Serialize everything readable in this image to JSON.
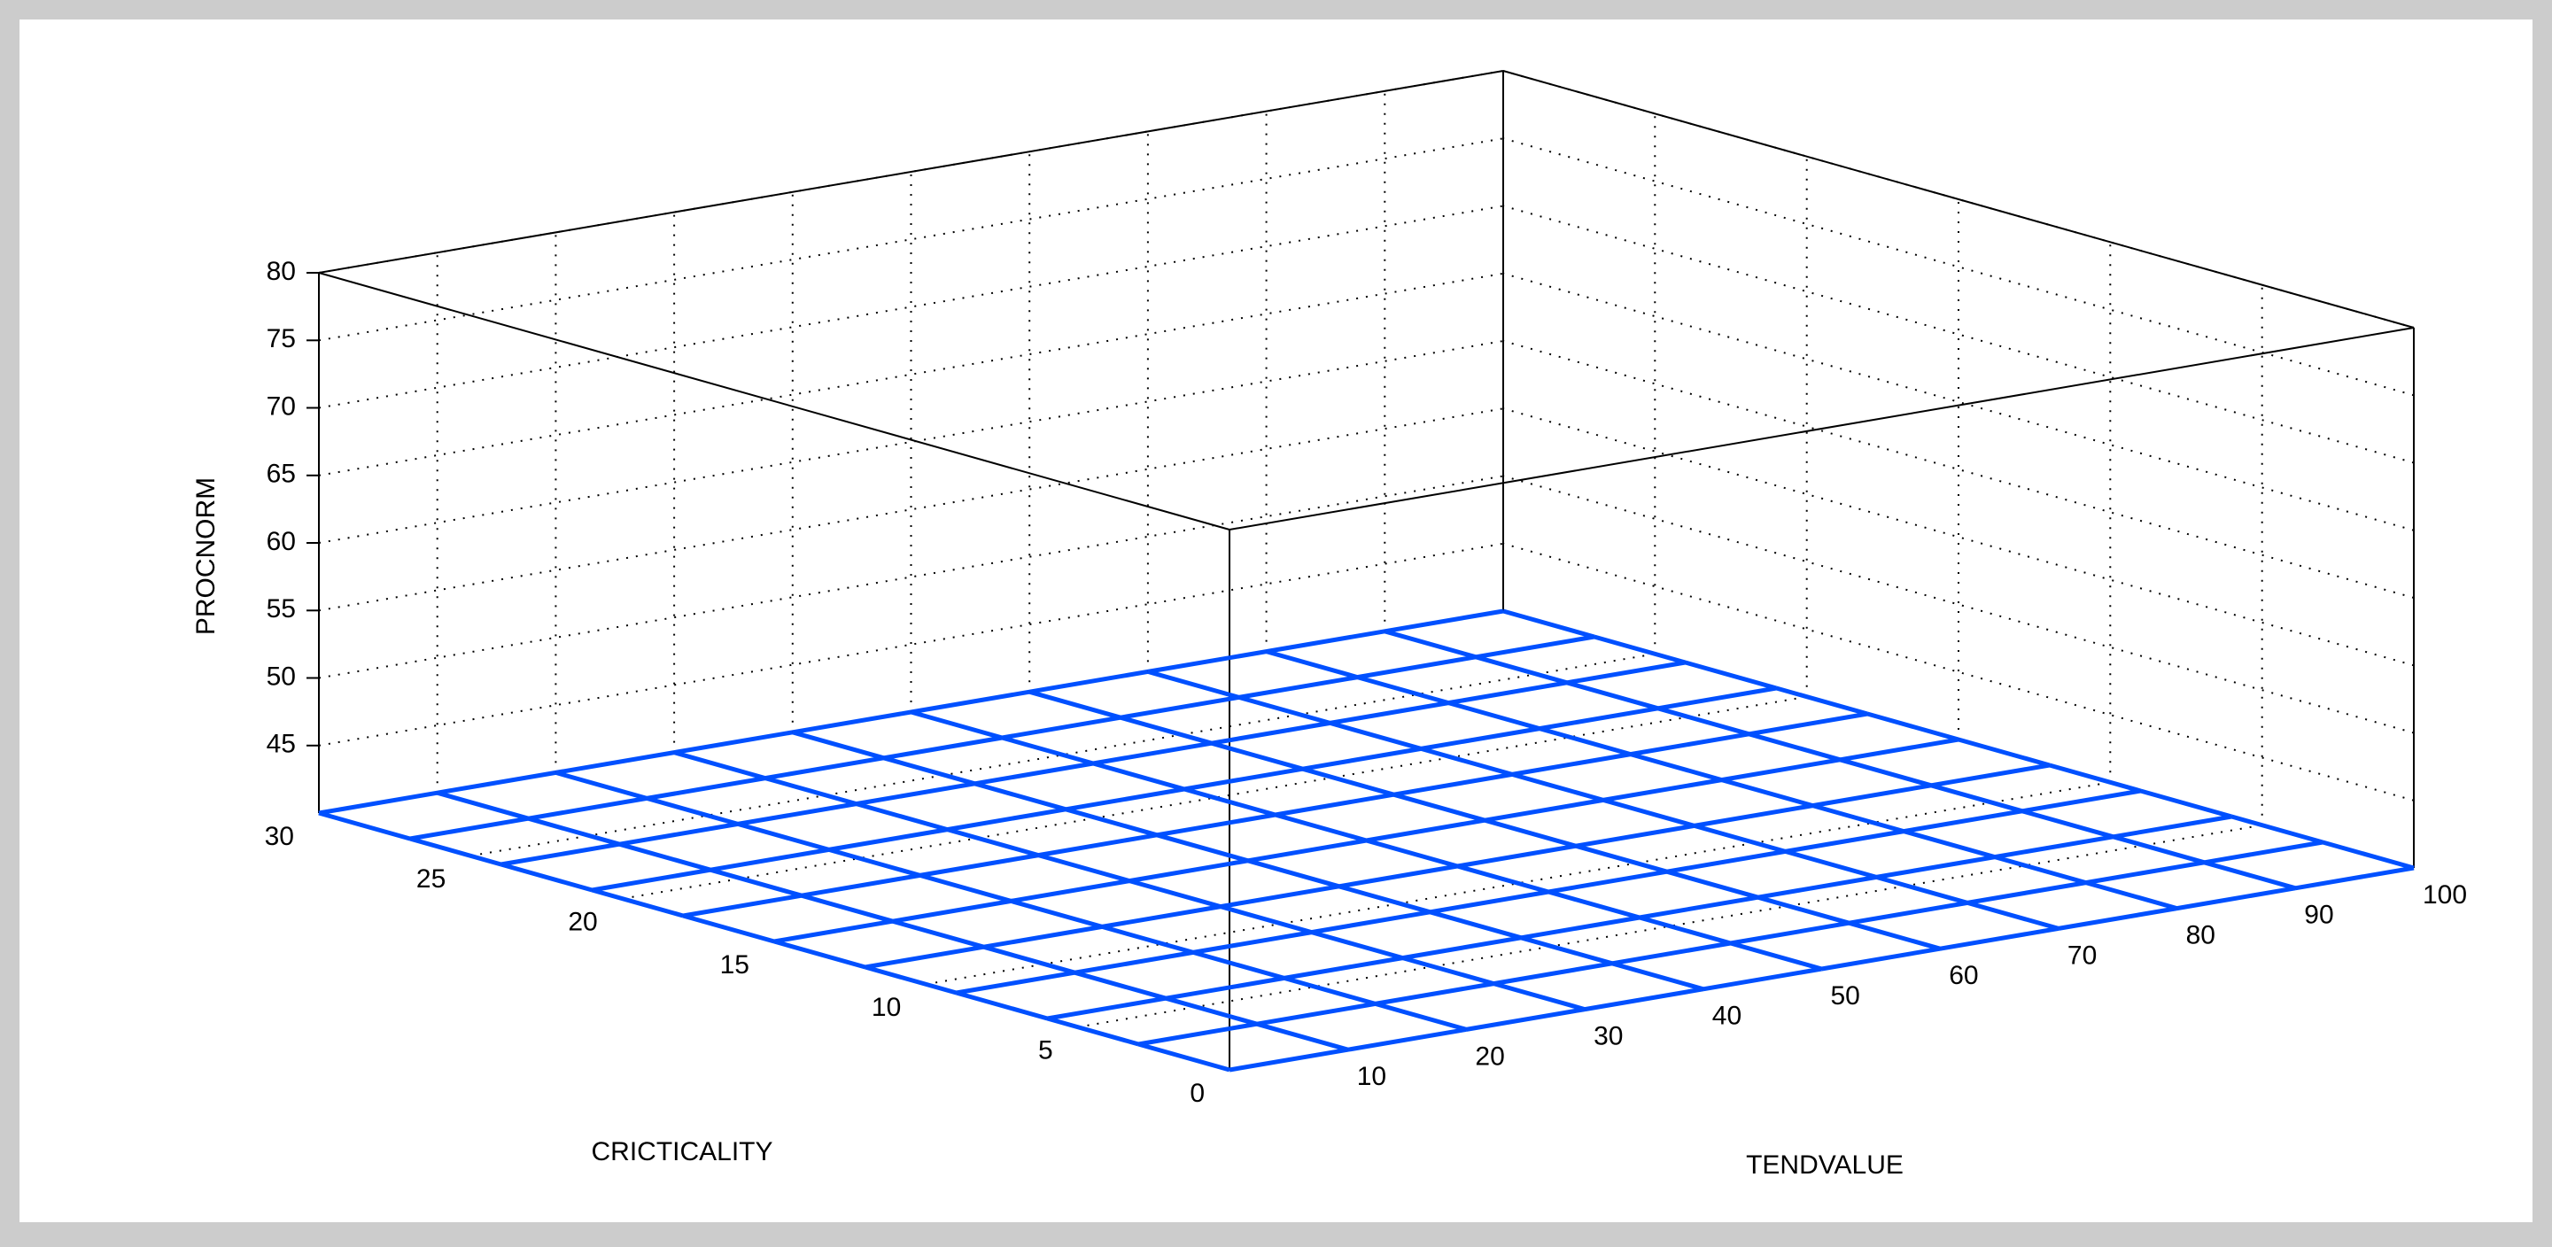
{
  "chart_data": {
    "type": "surface",
    "title": "",
    "xlabel": "TENDVALUE",
    "ylabel": "CRICTICALITY",
    "zlabel": "PROCNORM",
    "xlim": [
      0,
      100
    ],
    "ylim": [
      0,
      30
    ],
    "zlim": [
      40,
      80
    ],
    "x_ticks": [
      10,
      20,
      30,
      40,
      50,
      60,
      70,
      80,
      90,
      100
    ],
    "y_ticks": [
      0,
      5,
      10,
      15,
      20,
      25,
      30
    ],
    "z_ticks": [
      45,
      50,
      55,
      60,
      65,
      70,
      75,
      80
    ],
    "x": [
      0,
      10,
      20,
      30,
      40,
      50,
      60,
      70,
      80,
      90,
      100
    ],
    "y": [
      0,
      3,
      6,
      9,
      12,
      15,
      18,
      21,
      24,
      27,
      30
    ],
    "z_rows_by_y": [
      [
        40,
        40,
        40,
        40,
        40,
        40,
        40,
        40,
        40,
        40,
        40
      ],
      [
        40,
        40,
        40,
        40,
        40,
        40,
        40,
        40,
        40,
        40,
        40
      ],
      [
        40,
        40,
        40,
        40,
        40,
        40,
        40,
        40,
        40,
        40,
        40
      ],
      [
        40,
        40,
        40,
        40,
        40,
        40,
        40,
        40,
        40,
        40,
        40
      ],
      [
        40,
        40,
        40,
        40,
        40,
        40,
        40,
        40,
        40,
        40,
        40
      ],
      [
        40,
        40,
        40,
        40,
        40,
        40,
        40,
        40,
        40,
        40,
        40
      ],
      [
        40,
        40,
        40,
        40,
        40,
        40,
        40,
        40,
        40,
        40,
        40
      ],
      [
        40,
        40,
        40,
        40,
        40,
        40,
        40,
        40,
        40,
        40,
        40
      ],
      [
        40,
        40,
        40,
        40,
        40,
        40,
        40,
        40,
        40,
        40,
        40
      ],
      [
        40,
        40,
        40,
        40,
        40,
        40,
        40,
        40,
        40,
        40,
        40
      ],
      [
        40,
        40,
        40,
        40,
        40,
        40,
        40,
        40,
        40,
        40,
        40
      ]
    ],
    "colormap": [
      "#0050ff",
      "#00b4ff",
      "#30e0e0",
      "#60f0a0",
      "#b0f050",
      "#f0f020"
    ],
    "grid": true,
    "box": true
  },
  "colors": {
    "frame": "#cccccc",
    "axes_bg": "#ffffff",
    "axis_line": "#000000",
    "grid_line": "#000000"
  }
}
